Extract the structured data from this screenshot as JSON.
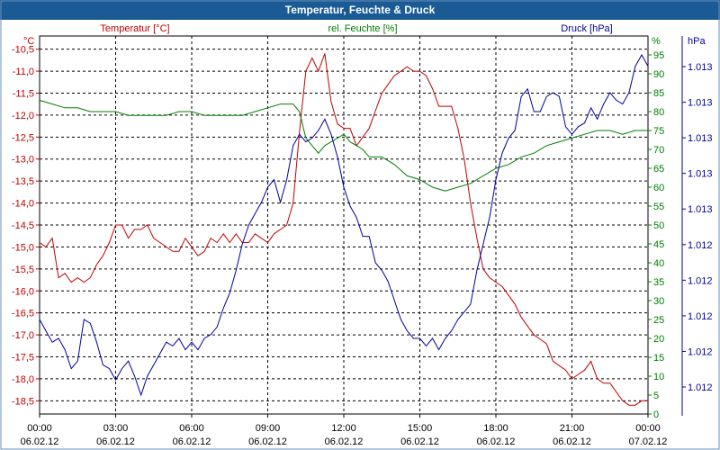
{
  "chart_data": {
    "type": "line",
    "title": "Temperatur, Feuchte & Druck",
    "grid": true,
    "x_ticks": [
      {
        "time": "00:00",
        "date": "06.02.12"
      },
      {
        "time": "03:00",
        "date": "06.02.12"
      },
      {
        "time": "06:00",
        "date": "06.02.12"
      },
      {
        "time": "09:00",
        "date": "06.02.12"
      },
      {
        "time": "12:00",
        "date": "06.02.12"
      },
      {
        "time": "15:00",
        "date": "06.02.12"
      },
      {
        "time": "18:00",
        "date": "06.02.12"
      },
      {
        "time": "21:00",
        "date": "06.02.12"
      },
      {
        "time": "00:00",
        "date": "07.02.12"
      }
    ],
    "x_range_hours": [
      0,
      24
    ],
    "axes": {
      "temperature": {
        "label": "Temperatur [°C]",
        "unit": "°C",
        "color": "#c00000",
        "range": [
          -18.8,
          -10.2
        ],
        "ticks": [
          "-10,5",
          "-11,0",
          "-11,5",
          "-12,0",
          "-12,5",
          "-13,0",
          "-13,5",
          "-14,0",
          "-14,5",
          "-15,0",
          "-15,5",
          "-16,0",
          "-16,5",
          "-17,0",
          "-17,5",
          "-18,0",
          "-18,5"
        ]
      },
      "humidity": {
        "label": "rel. Feuchte [%]",
        "unit": "%",
        "color": "#008000",
        "range": [
          0,
          100
        ],
        "ticks": [
          "95",
          "90",
          "85",
          "80",
          "75",
          "70",
          "65",
          "60",
          "55",
          "50",
          "45",
          "40",
          "35",
          "30",
          "25",
          "20",
          "15",
          "10",
          "5",
          "0"
        ]
      },
      "pressure": {
        "label": "Druck [hPa]",
        "unit": "hPa",
        "color": "#0000a0",
        "ticks": [
          "1.013",
          "1.013",
          "1.013",
          "1.013",
          "1.013",
          "1.012",
          "1.012",
          "1.012",
          "1.012",
          "1.012"
        ]
      }
    },
    "series": [
      {
        "name": "Temperatur [°C]",
        "axis": "temperature",
        "color": "#c00000",
        "x": [
          0,
          0.25,
          0.5,
          0.75,
          1.0,
          1.25,
          1.5,
          1.75,
          2.0,
          2.25,
          2.5,
          2.75,
          3.0,
          3.25,
          3.5,
          3.75,
          4.0,
          4.25,
          4.5,
          4.75,
          5.0,
          5.25,
          5.5,
          5.75,
          6.0,
          6.25,
          6.5,
          6.75,
          7.0,
          7.25,
          7.5,
          7.75,
          8.0,
          8.25,
          8.5,
          8.75,
          9.0,
          9.25,
          9.5,
          9.75,
          10.0,
          10.25,
          10.5,
          10.75,
          11.0,
          11.25,
          11.5,
          11.75,
          12.0,
          12.25,
          12.5,
          12.75,
          13.0,
          13.25,
          13.5,
          13.75,
          14.0,
          14.25,
          14.5,
          14.75,
          15.0,
          15.25,
          15.5,
          15.75,
          16.0,
          16.25,
          16.5,
          16.75,
          17.0,
          17.25,
          17.5,
          17.75,
          18.0,
          18.25,
          18.5,
          18.75,
          19.0,
          19.25,
          19.5,
          19.75,
          20.0,
          20.25,
          20.5,
          20.75,
          21.0,
          21.25,
          21.5,
          21.75,
          22.0,
          22.25,
          22.5,
          22.75,
          23.0,
          23.25,
          23.5,
          23.75,
          24.0
        ],
        "values": [
          -14.9,
          -15.0,
          -14.8,
          -15.7,
          -15.6,
          -15.8,
          -15.7,
          -15.8,
          -15.7,
          -15.4,
          -15.2,
          -14.9,
          -14.5,
          -14.5,
          -14.8,
          -14.6,
          -14.6,
          -14.5,
          -14.8,
          -14.9,
          -15.0,
          -15.1,
          -15.1,
          -14.8,
          -15.0,
          -15.2,
          -15.1,
          -14.8,
          -14.9,
          -14.7,
          -14.9,
          -14.7,
          -14.9,
          -14.9,
          -14.7,
          -14.8,
          -14.9,
          -14.7,
          -14.6,
          -14.5,
          -14.0,
          -12.4,
          -11.0,
          -10.7,
          -11.0,
          -10.6,
          -11.7,
          -12.2,
          -12.3,
          -12.3,
          -12.7,
          -12.5,
          -12.3,
          -11.9,
          -11.5,
          -11.3,
          -11.1,
          -11.0,
          -10.9,
          -11.0,
          -11.0,
          -11.1,
          -11.4,
          -11.8,
          -11.8,
          -11.8,
          -12.3,
          -13.0,
          -14.0,
          -14.8,
          -15.5,
          -15.7,
          -15.8,
          -15.9,
          -16.1,
          -16.3,
          -16.6,
          -16.8,
          -17.0,
          -17.1,
          -17.2,
          -17.6,
          -17.7,
          -17.8,
          -18.0,
          -17.9,
          -17.8,
          -17.6,
          -18.0,
          -18.1,
          -18.1,
          -18.3,
          -18.5,
          -18.6,
          -18.6,
          -18.5,
          -18.5
        ]
      },
      {
        "name": "rel. Feuchte [%]",
        "axis": "humidity",
        "color": "#008000",
        "x": [
          0,
          0.5,
          1.0,
          1.5,
          2.0,
          2.5,
          3.0,
          3.5,
          4.0,
          4.5,
          5.0,
          5.5,
          6.0,
          6.5,
          7.0,
          7.5,
          8.0,
          8.5,
          9.0,
          9.5,
          10.0,
          10.25,
          10.5,
          10.75,
          11.0,
          11.25,
          11.5,
          11.75,
          12.0,
          12.25,
          12.5,
          12.75,
          13.0,
          13.5,
          14.0,
          14.5,
          15.0,
          15.5,
          16.0,
          16.5,
          17.0,
          17.5,
          18.0,
          18.5,
          19.0,
          19.5,
          20.0,
          20.5,
          21.0,
          21.5,
          22.0,
          22.5,
          23.0,
          23.5,
          24.0
        ],
        "values": [
          83,
          82,
          81,
          81,
          80,
          80,
          80,
          79,
          79,
          79,
          79,
          80,
          80,
          79,
          79,
          79,
          79,
          80,
          81,
          82,
          82,
          80,
          73,
          71,
          69,
          71,
          72,
          73,
          74,
          72,
          71,
          70,
          68,
          68,
          66,
          63,
          62,
          60,
          59,
          60,
          61,
          63,
          65,
          66,
          68,
          69,
          71,
          72,
          73,
          74,
          75,
          75,
          74,
          75,
          75
        ]
      },
      {
        "name": "Druck [hPa]",
        "axis": "pressure",
        "color": "#0000a0",
        "range": [
          0,
          100
        ],
        "x": [
          0,
          0.25,
          0.5,
          0.75,
          1.0,
          1.25,
          1.5,
          1.75,
          2.0,
          2.25,
          2.5,
          2.75,
          3.0,
          3.25,
          3.5,
          3.75,
          4.0,
          4.25,
          4.5,
          4.75,
          5.0,
          5.25,
          5.5,
          5.75,
          6.0,
          6.25,
          6.5,
          6.75,
          7.0,
          7.25,
          7.5,
          7.75,
          8.0,
          8.25,
          8.5,
          8.75,
          9.0,
          9.25,
          9.5,
          9.75,
          10.0,
          10.25,
          10.5,
          10.75,
          11.0,
          11.25,
          11.5,
          11.75,
          12.0,
          12.25,
          12.5,
          12.75,
          13.0,
          13.25,
          13.5,
          13.75,
          14.0,
          14.25,
          14.5,
          14.75,
          15.0,
          15.25,
          15.5,
          15.75,
          16.0,
          16.25,
          16.5,
          16.75,
          17.0,
          17.25,
          17.5,
          17.75,
          18.0,
          18.25,
          18.5,
          18.75,
          19.0,
          19.25,
          19.5,
          19.75,
          20.0,
          20.25,
          20.5,
          20.75,
          21.0,
          21.25,
          21.5,
          21.75,
          22.0,
          22.25,
          22.5,
          22.75,
          23.0,
          23.25,
          23.5,
          23.75,
          24.0
        ],
        "values": [
          25,
          22,
          19,
          20,
          17,
          12,
          14,
          25,
          24,
          19,
          13,
          12,
          9,
          12,
          14,
          10,
          5,
          10,
          13,
          16,
          19,
          18,
          20,
          17,
          19,
          17,
          20,
          21,
          23,
          28,
          32,
          38,
          45,
          50,
          53,
          56,
          60,
          62,
          56,
          62,
          71,
          74,
          72,
          73,
          75,
          78,
          74,
          68,
          60,
          55,
          52,
          47,
          47,
          40,
          38,
          35,
          30,
          25,
          22,
          20,
          20,
          18,
          20,
          17,
          20,
          22,
          25,
          27,
          29,
          38,
          45,
          52,
          62,
          69,
          73,
          75,
          84,
          86,
          80,
          80,
          84,
          85,
          84,
          76,
          74,
          76,
          77,
          81,
          78,
          82,
          85,
          83,
          82,
          85,
          92,
          95,
          92
        ]
      }
    ]
  }
}
